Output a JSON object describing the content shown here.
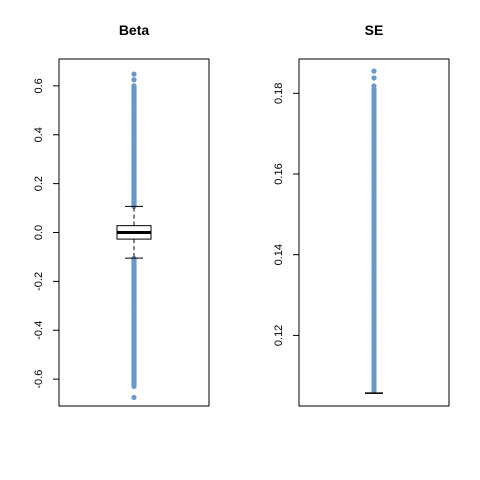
{
  "chart_data": [
    {
      "type": "boxplot",
      "title": "Beta",
      "xlabel": "",
      "ylabel": "",
      "ylim": [
        -0.71,
        0.71
      ],
      "yticks": [
        -0.6,
        -0.4,
        -0.2,
        0.0,
        0.2,
        0.4,
        0.6
      ],
      "ytick_labels": [
        "-0.6",
        "-0.4",
        "-0.2",
        "0.0",
        "0.2",
        "0.4",
        "0.6"
      ],
      "box": {
        "q1": -0.027,
        "median": 0.0,
        "q3": 0.028,
        "whisker_low": -0.105,
        "whisker_high": 0.107
      },
      "outliers_low_range": [
        -0.63,
        -0.107
      ],
      "outliers_high_range": [
        0.107,
        0.6
      ],
      "outliers_extra": [
        -0.675,
        0.625,
        0.648
      ],
      "point_color": "#6699cc"
    },
    {
      "type": "boxplot",
      "title": "SE",
      "xlabel": "",
      "ylabel": "",
      "ylim": [
        0.1025,
        0.1885
      ],
      "yticks": [
        0.12,
        0.14,
        0.16,
        0.18
      ],
      "ytick_labels": [
        "0.12",
        "0.14",
        "0.16",
        "0.18"
      ],
      "box": {
        "q1": 0.1057,
        "median": 0.1057,
        "q3": 0.1057,
        "whisker_low": 0.1057,
        "whisker_high": 0.1057
      },
      "outliers_high_range": [
        0.1062,
        0.181
      ],
      "outliers_extra": [
        0.1818,
        0.1838,
        0.1855
      ],
      "point_color": "#6699cc"
    }
  ]
}
